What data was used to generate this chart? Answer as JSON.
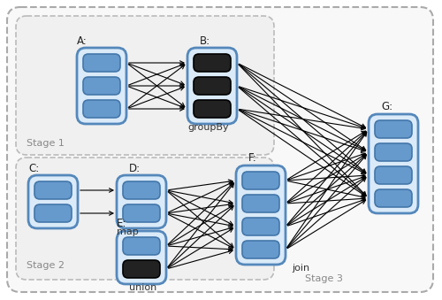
{
  "fig_bg": "#ffffff",
  "outer_bg": "#f8f8f8",
  "outer_edge": "#999999",
  "stage1_bg": "#eeeeee",
  "stage1_edge": "#aaaaaa",
  "stage2_bg": "#eeeeee",
  "stage2_edge": "#aaaaaa",
  "rdd_container_bg": "#daeaf8",
  "rdd_container_edge": "#5588bb",
  "blue_item_color": "#6699cc",
  "blue_item_edge": "#4477aa",
  "dark_item_color": "#222222",
  "dark_item_edge": "#000000",
  "label_color": "#222222",
  "stage_label_color": "#888888",
  "op_label_color": "#333333",
  "stage1_label": "Stage 1",
  "stage2_label": "Stage 2",
  "stage3_label": "Stage 3",
  "groupby_label": "groupBy",
  "map_label": "map",
  "union_label": "union",
  "join_label": "join"
}
